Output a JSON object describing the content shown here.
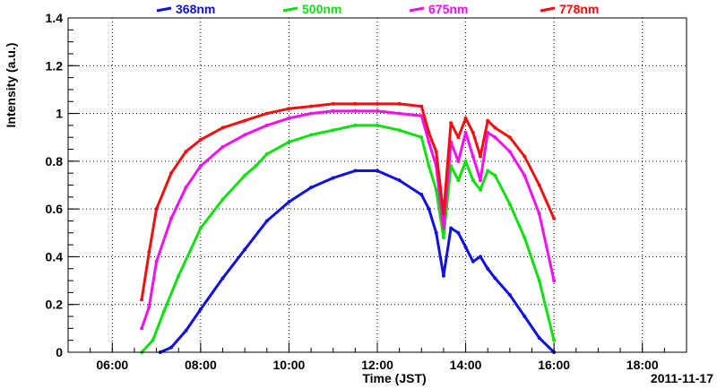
{
  "chart_data": {
    "type": "scatter",
    "title": "",
    "xlabel": "Time (JST)",
    "ylabel": "Intensity (a.u.)",
    "date_label": "2011-11-17",
    "xlim": [
      "05:00",
      "19:00"
    ],
    "ylim": [
      0,
      1.4
    ],
    "x_ticks": [
      "06:00",
      "08:00",
      "10:00",
      "12:00",
      "14:00",
      "16:00",
      "18:00"
    ],
    "y_ticks": [
      "0",
      "0.2",
      "0.4",
      "0.6",
      "0.8",
      "1",
      "1.2",
      "1.4"
    ],
    "grid": true,
    "legend_position": "top",
    "series": [
      {
        "name": "368nm",
        "color": "#1010e0",
        "x": [
          "07:05",
          "07:20",
          "07:40",
          "08:00",
          "08:30",
          "09:00",
          "09:30",
          "10:00",
          "10:30",
          "11:00",
          "11:30",
          "12:00",
          "12:30",
          "13:00",
          "13:10",
          "13:20",
          "13:30",
          "13:40",
          "13:50",
          "14:00",
          "14:10",
          "14:20",
          "14:30",
          "14:40",
          "15:00",
          "15:20",
          "15:40",
          "16:00"
        ],
        "y": [
          0,
          0.02,
          0.09,
          0.18,
          0.31,
          0.43,
          0.55,
          0.63,
          0.69,
          0.73,
          0.76,
          0.76,
          0.72,
          0.66,
          0.6,
          0.5,
          0.32,
          0.52,
          0.5,
          0.44,
          0.38,
          0.4,
          0.35,
          0.31,
          0.24,
          0.15,
          0.06,
          0
        ]
      },
      {
        "name": "500nm",
        "color": "#10e010",
        "x": [
          "06:40",
          "06:55",
          "07:10",
          "07:30",
          "08:00",
          "08:30",
          "09:00",
          "09:15",
          "09:30",
          "10:00",
          "10:30",
          "11:00",
          "11:30",
          "12:00",
          "12:30",
          "13:00",
          "13:10",
          "13:20",
          "13:30",
          "13:40",
          "13:50",
          "14:00",
          "14:10",
          "14:20",
          "14:30",
          "14:40",
          "15:00",
          "15:20",
          "15:40",
          "16:00"
        ],
        "y": [
          0,
          0.05,
          0.17,
          0.32,
          0.52,
          0.64,
          0.74,
          0.78,
          0.83,
          0.88,
          0.91,
          0.93,
          0.95,
          0.95,
          0.93,
          0.9,
          0.78,
          0.68,
          0.48,
          0.78,
          0.72,
          0.8,
          0.72,
          0.68,
          0.76,
          0.74,
          0.62,
          0.48,
          0.3,
          0.05
        ]
      },
      {
        "name": "675nm",
        "color": "#f010f0",
        "x": [
          "06:40",
          "06:50",
          "07:00",
          "07:20",
          "07:40",
          "08:00",
          "08:30",
          "09:00",
          "09:30",
          "10:00",
          "10:30",
          "11:00",
          "11:30",
          "12:00",
          "12:30",
          "13:00",
          "13:10",
          "13:20",
          "13:30",
          "13:40",
          "13:50",
          "14:00",
          "14:10",
          "14:20",
          "14:30",
          "14:40",
          "15:00",
          "15:20",
          "15:40",
          "16:00"
        ],
        "y": [
          0.1,
          0.19,
          0.38,
          0.56,
          0.69,
          0.78,
          0.86,
          0.91,
          0.95,
          0.98,
          1.0,
          1.01,
          1.01,
          1.01,
          1.0,
          0.99,
          0.88,
          0.78,
          0.52,
          0.88,
          0.8,
          0.92,
          0.82,
          0.72,
          0.92,
          0.9,
          0.84,
          0.74,
          0.58,
          0.3
        ]
      },
      {
        "name": "778nm",
        "color": "#f01010",
        "x": [
          "06:40",
          "06:50",
          "07:00",
          "07:20",
          "07:40",
          "08:00",
          "08:30",
          "09:00",
          "09:30",
          "10:00",
          "10:30",
          "11:00",
          "11:30",
          "12:00",
          "12:30",
          "13:00",
          "13:10",
          "13:20",
          "13:30",
          "13:40",
          "13:50",
          "14:00",
          "14:10",
          "14:20",
          "14:30",
          "14:40",
          "15:00",
          "15:20",
          "15:40",
          "16:00"
        ],
        "y": [
          0.22,
          0.42,
          0.6,
          0.75,
          0.84,
          0.89,
          0.94,
          0.97,
          1.0,
          1.02,
          1.03,
          1.04,
          1.04,
          1.04,
          1.04,
          1.03,
          0.92,
          0.84,
          0.58,
          0.96,
          0.9,
          0.98,
          0.92,
          0.82,
          0.97,
          0.94,
          0.9,
          0.82,
          0.7,
          0.56
        ]
      }
    ]
  }
}
